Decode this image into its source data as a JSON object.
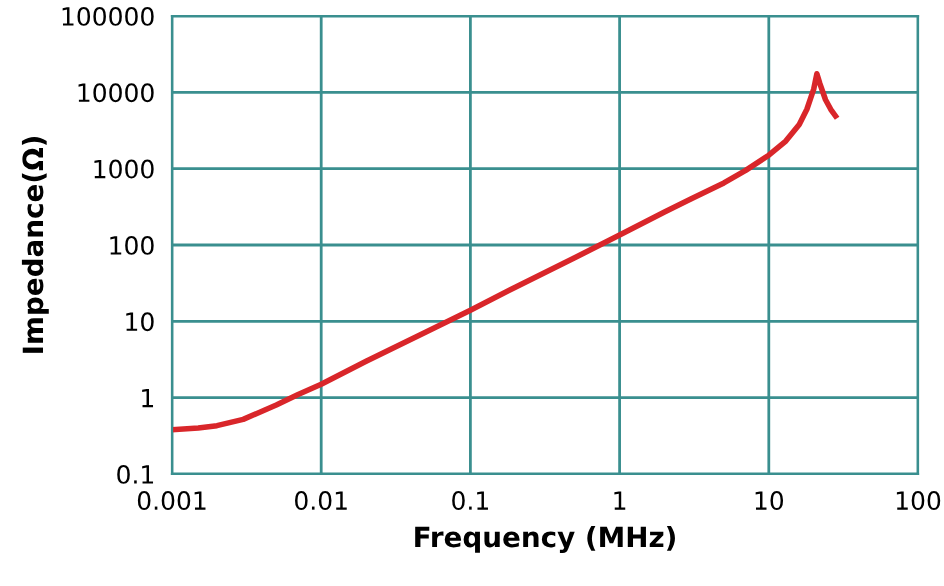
{
  "chart_data": {
    "type": "line",
    "xlabel": "Frequency (MHz)",
    "ylabel": "Impedance(Ω)",
    "log": "xy",
    "grid": true,
    "marker": "none",
    "line_style": "solid",
    "xlim": [
      0.001,
      100
    ],
    "xticks": [
      0.001,
      0.01,
      0.1,
      1,
      10,
      100
    ],
    "ylim": [
      0.1,
      100000
    ],
    "yticks": [
      0.1,
      1,
      10,
      100,
      1000,
      10000,
      100000
    ],
    "series": [
      {
        "color": "#d9262a",
        "x": [
          0.001,
          0.0015,
          0.002,
          0.003,
          0.005,
          0.007,
          0.01,
          0.02,
          0.05,
          0.1,
          0.2,
          0.5,
          1,
          2,
          3,
          5,
          7,
          10,
          13,
          16,
          18,
          20,
          21,
          22,
          24,
          26,
          28
        ],
        "values": [
          0.38,
          0.4,
          0.43,
          0.52,
          0.8,
          1.1,
          1.5,
          3,
          7.2,
          14,
          28,
          68,
          135,
          270,
          400,
          650,
          950,
          1500,
          2300,
          3800,
          6000,
          11000,
          17500,
          13000,
          8000,
          6000,
          4900
        ]
      }
    ]
  }
}
